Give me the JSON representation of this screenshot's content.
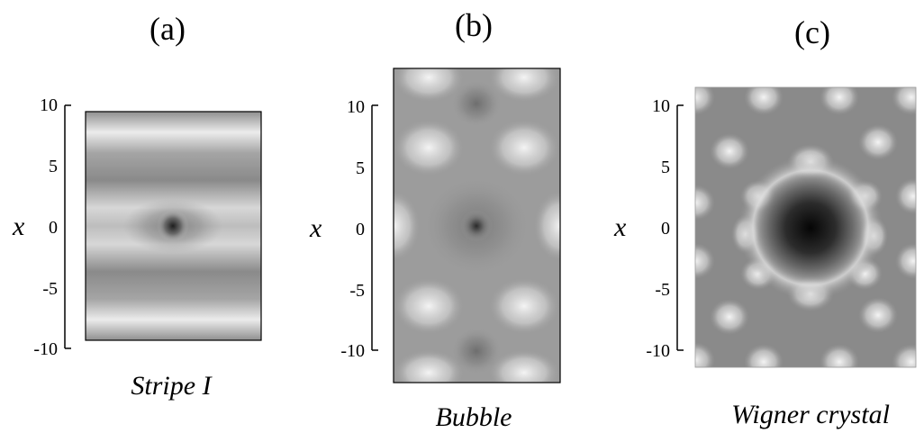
{
  "figure": {
    "panels": [
      {
        "id": "a",
        "label": "(a)",
        "caption": "Stripe I",
        "axis_variable": "x",
        "y_ticks": [
          "10",
          "5",
          "0",
          "-5",
          "-10"
        ],
        "y_range": [
          -10,
          10
        ]
      },
      {
        "id": "b",
        "label": "(b)",
        "caption": "Bubble",
        "axis_variable": "x",
        "y_ticks": [
          "10",
          "5",
          "0",
          "-5",
          "-10"
        ],
        "y_range": [
          -10,
          10
        ]
      },
      {
        "id": "c",
        "label": "(c)",
        "caption": "Wigner crystal",
        "axis_variable": "x",
        "y_ticks": [
          "10",
          "5",
          "0",
          "-5",
          "-10"
        ],
        "y_range": [
          -10,
          10
        ]
      }
    ]
  },
  "colors": {
    "background": "#ffffff",
    "axis": "#000000",
    "dark": "#000000",
    "mid": "#808080",
    "light": "#f4f4f4"
  }
}
